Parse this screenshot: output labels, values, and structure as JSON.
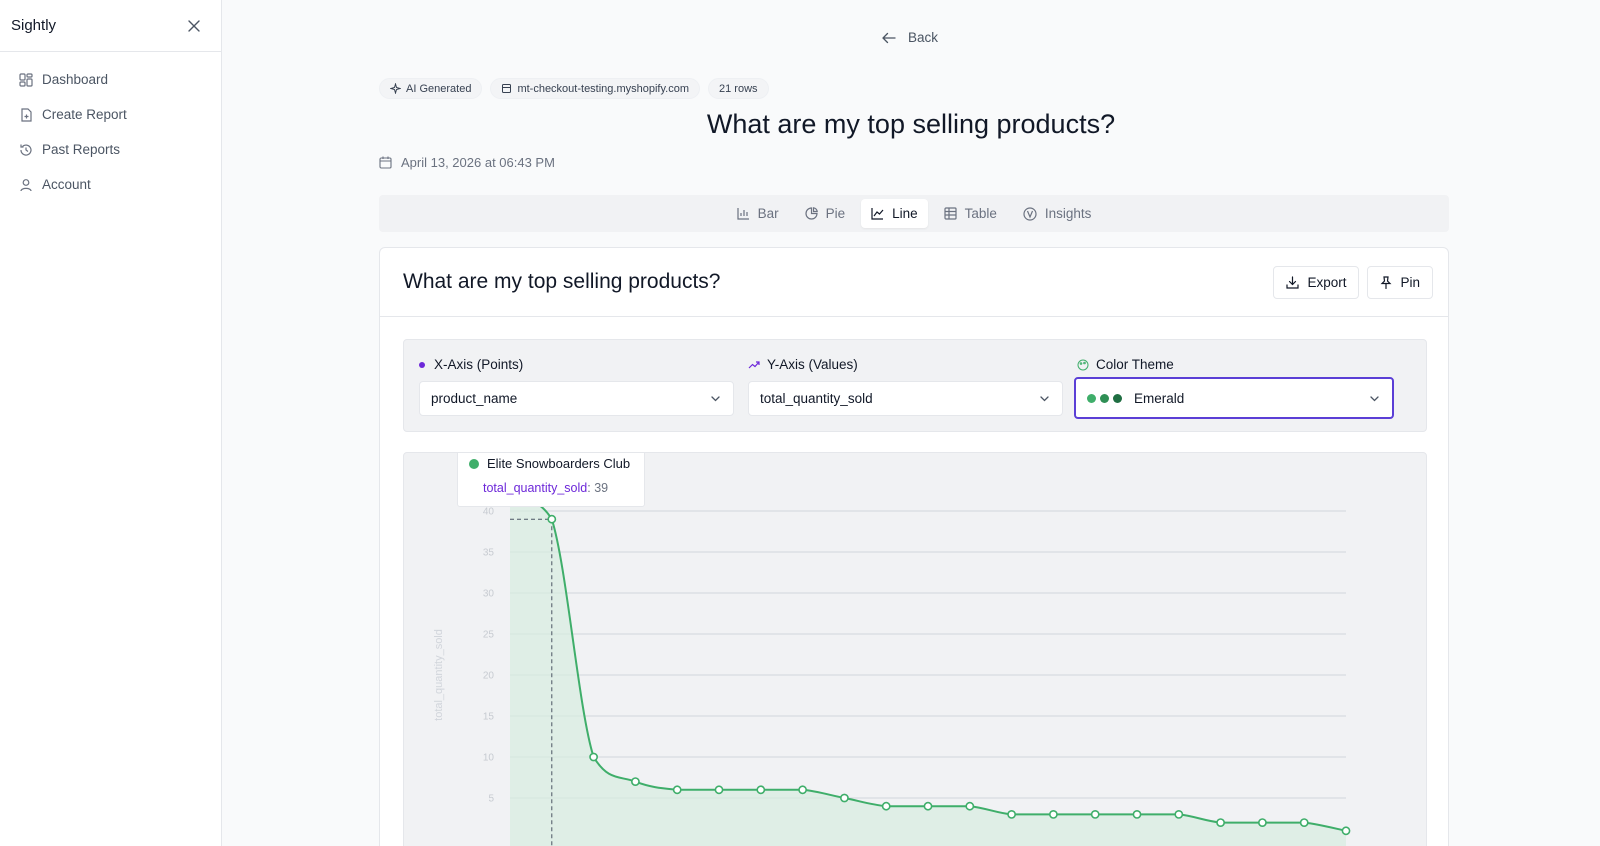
{
  "sidebar": {
    "brand": "Sightly",
    "items": [
      {
        "label": "Dashboard",
        "icon": "grid-icon"
      },
      {
        "label": "Create Report",
        "icon": "file-plus-icon"
      },
      {
        "label": "Past Reports",
        "icon": "history-icon"
      },
      {
        "label": "Account",
        "icon": "user-icon"
      }
    ]
  },
  "header": {
    "back_label": "Back",
    "chips": [
      "AI Generated",
      "mt-checkout-testing.myshopify.com",
      "21 rows"
    ],
    "title": "What are my top selling products?",
    "date": "April 13, 2026 at 06:43 PM"
  },
  "tabs": [
    {
      "label": "Bar",
      "icon": "bar-chart-icon"
    },
    {
      "label": "Pie",
      "icon": "pie-chart-icon"
    },
    {
      "label": "Line",
      "icon": "line-chart-icon",
      "active": true
    },
    {
      "label": "Table",
      "icon": "table-icon"
    },
    {
      "label": "Insights",
      "icon": "insights-icon"
    }
  ],
  "card": {
    "title": "What are my top selling products?",
    "export_label": "Export",
    "pin_label": "Pin"
  },
  "controls": {
    "x_axis": {
      "label": "X-Axis (Points)",
      "value": "product_name"
    },
    "y_axis": {
      "label": "Y-Axis (Values)",
      "value": "total_quantity_sold"
    },
    "theme": {
      "label": "Color Theme",
      "value": "Emerald",
      "swatches": [
        "#3fae6a",
        "#2f8f55",
        "#1f6e42"
      ]
    }
  },
  "tooltip": {
    "title": "Elite Snowboarders Club",
    "key": "total_quantity_sold",
    "value": "39"
  },
  "colors": {
    "accent": "#5b3fd6",
    "line": "#3fae6a",
    "fill": "#d7ece0"
  },
  "chart_data": {
    "type": "area",
    "ylabel": "total_quantity_sold",
    "ylim": [
      0,
      40
    ],
    "yticks": [
      5,
      10,
      15,
      20,
      25,
      30,
      35,
      40
    ],
    "values": [
      42,
      39,
      10,
      7,
      6,
      6,
      6,
      6,
      5,
      4,
      4,
      4,
      3,
      3,
      3,
      3,
      3,
      2,
      2,
      2,
      1
    ],
    "highlighted_index": 1,
    "grid": true
  }
}
